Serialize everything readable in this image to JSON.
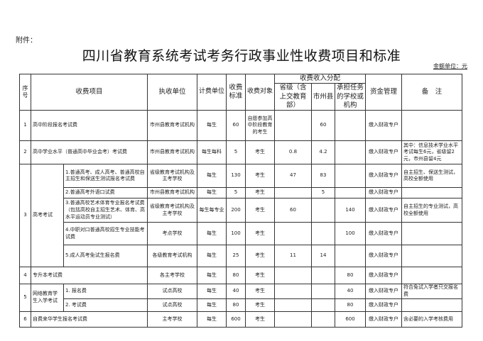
{
  "attachment_label": "附件：",
  "title": "四川省教育系统考试考务行政事业性收费项目和标准",
  "amount_unit": "金额单位：元",
  "headers": {
    "seq": "序号",
    "item": "收费项目",
    "collector": "执收单位",
    "billing_unit": "计费单位",
    "standard": "收费标准",
    "target": "收费对象",
    "distribution": "收费收入分配",
    "provincial": "省级（含上交教育部）",
    "city_county": "市州县",
    "school": "承担任务的学校或机构",
    "fund_mgmt": "资金管理",
    "remark": "备　注"
  },
  "rows": [
    {
      "seq": "1",
      "item": "高中阶段报名考试费",
      "collector": "市州县教育考试机构",
      "unit": "每生",
      "standard": "60",
      "target": "自愿参加高中阶段教育的考生",
      "prov": "",
      "city": "60",
      "school": "",
      "fund": "缴入财政专户",
      "remark": ""
    },
    {
      "seq": "2",
      "item": "高中学业水平（普通高中毕业会考）考试费",
      "collector": "市州县教育考试机构",
      "unit": "每生每科",
      "standard": "5",
      "target": "考生",
      "prov": "0.8",
      "city": "4.2",
      "school": "",
      "fund": "缴入财政专户",
      "remark": "其中：信息技术学业水平考试每生6元，省级留2元，市州县留4元"
    },
    {
      "seq": "3",
      "group": "高考考试",
      "item": "1.普通高考、成人高考、普通高校自主招生和保送生测试报名考试费",
      "collector": "省级教育考试机构及主考学校",
      "unit": "每生",
      "standard": "130",
      "target": "考生",
      "prov": "47",
      "city": "83",
      "school": "",
      "fund": "缴入财政专户",
      "remark": "自主招生、保送生测试，高校全额使用"
    },
    {
      "item": "2.普通高考外语口试费",
      "collector": "市州县教育考试机构",
      "unit": "每生",
      "standard": "5",
      "target": "考生",
      "prov": "",
      "city": "5",
      "school": "",
      "fund": "缴入财政专户",
      "remark": ""
    },
    {
      "item": "3.普通高校艺术体育专业报名考试费（包括高校自主招生艺术、体育、高水平运动员专业测试）",
      "collector": "省级教育考试机构及主考学校",
      "unit": "每生每专业",
      "standard": "200",
      "target": "考生",
      "prov": "60",
      "city": "",
      "school": "140",
      "fund": "缴入财政专户",
      "remark": "自主招生的专业测试，高校全额使用"
    },
    {
      "item": "4.中职对口普通高校招生专业技能考试费",
      "collector": "考点学校",
      "unit": "每生",
      "standard": "100",
      "target": "考生",
      "prov": "",
      "city": "",
      "school": "100",
      "fund": "缴入财政专户",
      "remark": ""
    },
    {
      "item": "5.成人高考免试生报名费",
      "collector": "各级教育考试机构",
      "unit": "每生",
      "standard": "25",
      "target": "考生",
      "prov": "11",
      "city": "14",
      "school": "",
      "fund": "缴入财政专户",
      "remark": ""
    },
    {
      "seq": "4",
      "item": "专升本考试费",
      "collector": "各主考学校",
      "unit": "每生",
      "standard": "80",
      "target": "考生",
      "prov": "",
      "city": "",
      "school": "80",
      "fund": "缴入财政专户",
      "remark": ""
    },
    {
      "seq": "5",
      "group": "网络教育学生入学考试",
      "item": "1. 报名费",
      "collector": "试点高校",
      "unit": "每生",
      "standard": "40",
      "target": "考生",
      "prov": "",
      "city": "",
      "school": "40",
      "fund": "缴入财政专户",
      "remark": "符合免试入学者只交报名费"
    },
    {
      "item": "2. 考试费",
      "collector": "试点高校",
      "unit": "每生",
      "standard": "80",
      "target": "考生",
      "prov": "",
      "city": "",
      "school": "80",
      "fund": "缴入财政专户",
      "remark": ""
    },
    {
      "seq": "6",
      "item": "自费来华学生报名考试费",
      "collector": "主考学校",
      "unit": "每生",
      "standard": "600",
      "target": "考生",
      "prov": "",
      "city": "",
      "school": "600",
      "fund": "缴入财政专户",
      "remark": "含必要的入学考核费用"
    }
  ]
}
